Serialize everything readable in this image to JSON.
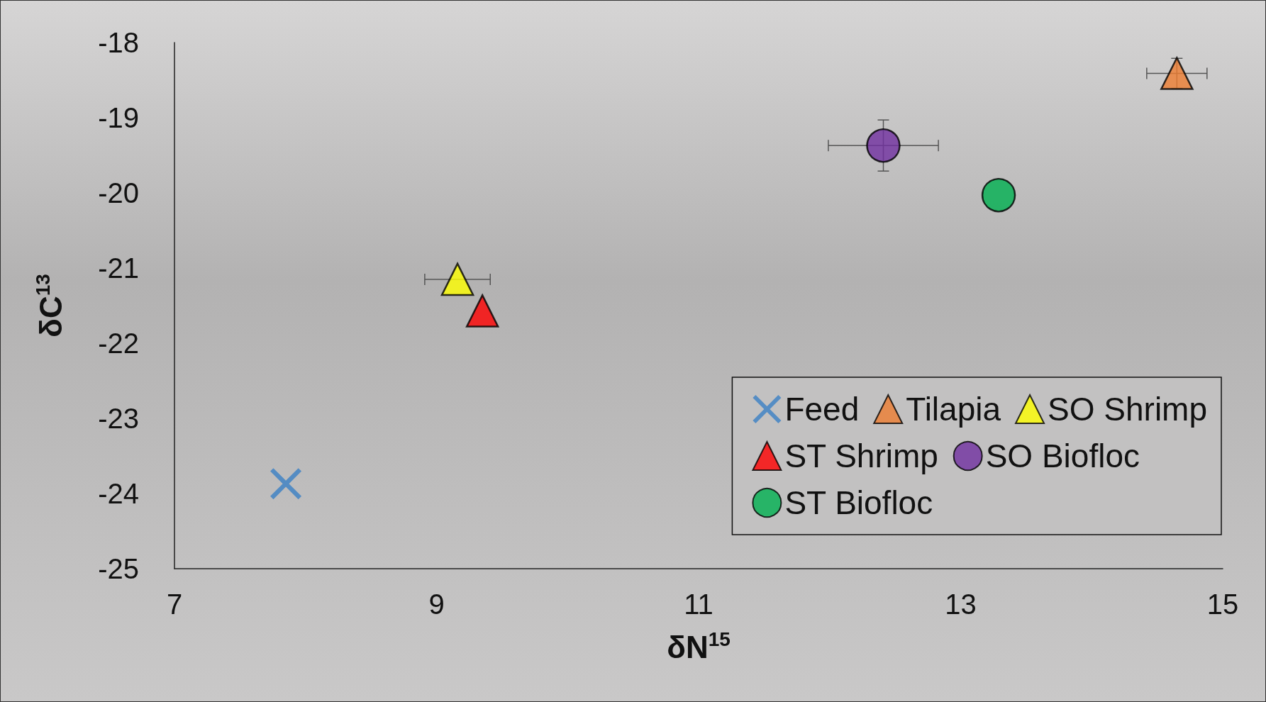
{
  "chart_data": {
    "type": "scatter",
    "xlabel": "δN$^{15}$",
    "ylabel": "δC$^{13}$",
    "xlim": [
      7,
      15
    ],
    "xticks": [
      7,
      9,
      11,
      13,
      15
    ],
    "ylim": [
      -25,
      -18
    ],
    "yticks": [
      -25,
      -24,
      -23,
      -22,
      -21,
      -20,
      -19,
      -18
    ],
    "grid": false,
    "legend": "bottom right",
    "series": [
      {
        "name": "Feed",
        "color": "#3a7fc4",
        "marker": "cross",
        "x": [
          7.85
        ],
        "values": [
          -23.87
        ]
      },
      {
        "name": "Tilapia",
        "color": "#ed7d31",
        "marker": "triangle",
        "x": [
          14.65
        ],
        "values": [
          -18.41
        ],
        "xerrors": [
          0.23
        ],
        "errors": [
          0.2
        ]
      },
      {
        "name": "SO Shrimp",
        "color": "#ffff00",
        "marker": "triangle",
        "x": [
          9.16
        ],
        "values": [
          -21.15
        ],
        "xerrors": [
          0.25
        ]
      },
      {
        "name": "ST Shrimp",
        "color": "#ff0000",
        "marker": "triangle",
        "x": [
          9.35
        ],
        "values": [
          -21.57
        ]
      },
      {
        "name": "SO Biofloc",
        "color": "#7030a0",
        "marker": "circle",
        "x": [
          12.41
        ],
        "values": [
          -19.37
        ],
        "xerrors": [
          0.42
        ],
        "errors": [
          0.34
        ]
      },
      {
        "name": "ST Biofloc",
        "color": "#00b050",
        "marker": "circle",
        "x": [
          13.29
        ],
        "values": [
          -20.03
        ]
      }
    ]
  }
}
